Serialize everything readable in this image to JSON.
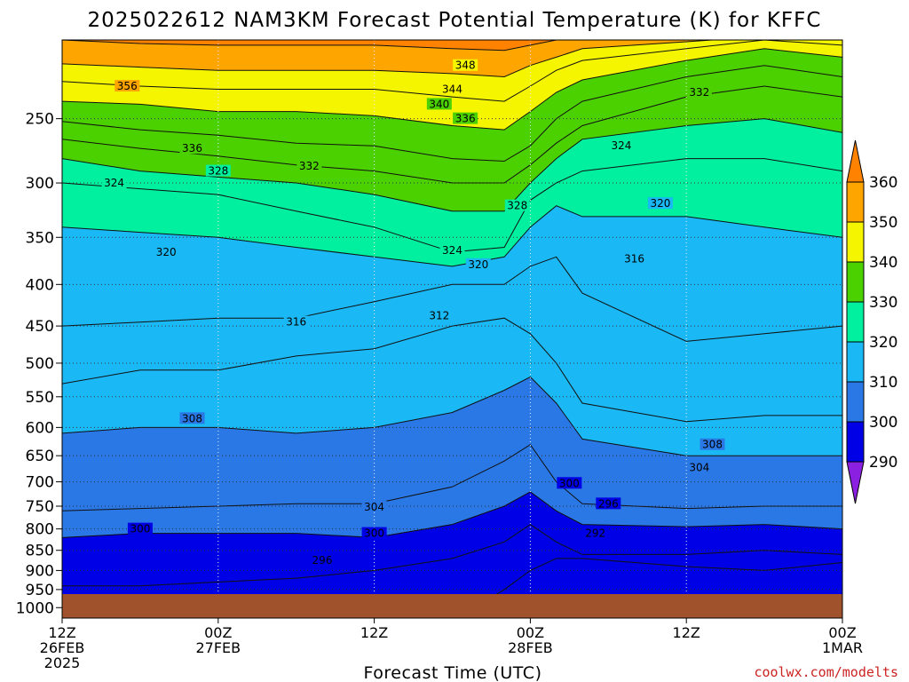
{
  "title": "2025022612 NAM3KM Forecast Potential Temperature (K) for KFFC",
  "xlabel": "Forecast Time (UTC)",
  "credit": "coolwx.com/modelts",
  "chart_data": {
    "type": "heatmap",
    "title": "2025022612 NAM3KM Forecast Potential Temperature (K) for KFFC",
    "xlabel": "Forecast Time (UTC)",
    "ylabel": "",
    "y_scale": "log-pressure",
    "y_axis_reversed": true,
    "ylim_hPa": [
      1030,
      200
    ],
    "xlim_hours": [
      0,
      60
    ],
    "grid": true,
    "x_ticks": [
      {
        "hour": 0,
        "label1": "12Z",
        "label2": "26FEB",
        "label3": "2025"
      },
      {
        "hour": 12,
        "label1": "00Z",
        "label2": "27FEB",
        "label3": ""
      },
      {
        "hour": 24,
        "label1": "12Z",
        "label2": "",
        "label3": ""
      },
      {
        "hour": 36,
        "label1": "00Z",
        "label2": "28FEB",
        "label3": ""
      },
      {
        "hour": 48,
        "label1": "12Z",
        "label2": "",
        "label3": ""
      },
      {
        "hour": 60,
        "label1": "00Z",
        "label2": "1MAR",
        "label3": ""
      }
    ],
    "y_ticks": [
      250,
      300,
      350,
      400,
      450,
      500,
      550,
      600,
      650,
      700,
      750,
      800,
      850,
      900,
      950,
      1000
    ],
    "colorbar": {
      "levels": [
        290,
        300,
        310,
        320,
        330,
        340,
        350,
        360
      ],
      "colors": [
        "#8c20e0",
        "#0000e6",
        "#2a78e6",
        "#1ab8f5",
        "#00f0a0",
        "#4cd100",
        "#f5f500",
        "#ffa500",
        "#ff8200"
      ],
      "extend": "both"
    },
    "x_hours": [
      0,
      6,
      12,
      18,
      24,
      30,
      34,
      36,
      38,
      40,
      48,
      54,
      60
    ],
    "isotherm_levels_K": [
      292,
      296,
      300,
      304,
      308,
      312,
      316,
      320,
      324,
      328,
      332,
      336,
      340,
      344,
      348,
      356
    ],
    "isotherm_pressures_hPa": {
      "292": [
        1040,
        1040,
        1040,
        1040,
        1040,
        1040,
        950,
        900,
        870,
        870,
        890,
        900,
        880
      ],
      "296": [
        940,
        940,
        930,
        920,
        900,
        870,
        830,
        790,
        830,
        860,
        860,
        850,
        860
      ],
      "300": [
        820,
        810,
        810,
        810,
        820,
        790,
        750,
        720,
        760,
        790,
        795,
        790,
        800
      ],
      "304": [
        760,
        755,
        750,
        745,
        745,
        710,
        660,
        630,
        700,
        745,
        755,
        750,
        750
      ],
      "308": [
        610,
        600,
        600,
        610,
        600,
        575,
        540,
        520,
        560,
        620,
        650,
        650,
        650
      ],
      "312": [
        530,
        510,
        510,
        490,
        480,
        450,
        440,
        460,
        500,
        560,
        590,
        580,
        580
      ],
      "316": [
        450,
        445,
        440,
        440,
        420,
        400,
        400,
        380,
        370,
        410,
        470,
        460,
        450
      ],
      "320": [
        340,
        345,
        350,
        360,
        370,
        380,
        370,
        340,
        320,
        330,
        330,
        340,
        350
      ],
      "324": [
        300,
        305,
        310,
        325,
        340,
        365,
        360,
        315,
        300,
        290,
        280,
        280,
        290
      ],
      "328": [
        280,
        290,
        295,
        300,
        310,
        325,
        325,
        300,
        280,
        265,
        255,
        250,
        260
      ],
      "332": [
        265,
        272,
        278,
        285,
        290,
        300,
        300,
        285,
        268,
        255,
        235,
        228,
        235
      ],
      "336": [
        252,
        258,
        262,
        268,
        270,
        280,
        282,
        270,
        250,
        238,
        222,
        215,
        222
      ],
      "340": [
        238,
        240,
        245,
        245,
        248,
        255,
        258,
        245,
        232,
        224,
        212,
        205,
        210
      ],
      "344": [
        225,
        228,
        230,
        230,
        230,
        235,
        238,
        228,
        218,
        212,
        205,
        200,
        203
      ],
      "348": [
        214,
        216,
        218,
        218,
        218,
        220,
        222,
        215,
        210,
        205,
        201,
        198,
        200
      ],
      "356": [
        200,
        202,
        203,
        203,
        203,
        205,
        206,
        203,
        200,
        198,
        196,
        195,
        196
      ]
    },
    "contour_labels": [
      {
        "value": "356",
        "hour": 5,
        "p": 228
      },
      {
        "value": "348",
        "hour": 31,
        "p": 215
      },
      {
        "value": "344",
        "hour": 30,
        "p": 230
      },
      {
        "value": "340",
        "hour": 29,
        "p": 240
      },
      {
        "value": "336",
        "hour": 31,
        "p": 250
      },
      {
        "value": "336",
        "hour": 10,
        "p": 272
      },
      {
        "value": "332",
        "hour": 49,
        "p": 232
      },
      {
        "value": "332",
        "hour": 19,
        "p": 286
      },
      {
        "value": "328",
        "hour": 12,
        "p": 290
      },
      {
        "value": "324",
        "hour": 4,
        "p": 300
      },
      {
        "value": "324",
        "hour": 43,
        "p": 270
      },
      {
        "value": "328",
        "hour": 35,
        "p": 320
      },
      {
        "value": "320",
        "hour": 46,
        "p": 318
      },
      {
        "value": "324",
        "hour": 30,
        "p": 363
      },
      {
        "value": "320",
        "hour": 32,
        "p": 378
      },
      {
        "value": "320",
        "hour": 8,
        "p": 365
      },
      {
        "value": "316",
        "hour": 44,
        "p": 372
      },
      {
        "value": "316",
        "hour": 18,
        "p": 445
      },
      {
        "value": "312",
        "hour": 29,
        "p": 437
      },
      {
        "value": "308",
        "hour": 10,
        "p": 585
      },
      {
        "value": "308",
        "hour": 50,
        "p": 630
      },
      {
        "value": "304",
        "hour": 49,
        "p": 672
      },
      {
        "value": "304",
        "hour": 24,
        "p": 752
      },
      {
        "value": "300",
        "hour": 39,
        "p": 703
      },
      {
        "value": "300",
        "hour": 6,
        "p": 800
      },
      {
        "value": "300",
        "hour": 24,
        "p": 810
      },
      {
        "value": "296",
        "hour": 42,
        "p": 745
      },
      {
        "value": "292",
        "hour": 41,
        "p": 810
      },
      {
        "value": "296",
        "hour": 20,
        "p": 875
      }
    ]
  }
}
